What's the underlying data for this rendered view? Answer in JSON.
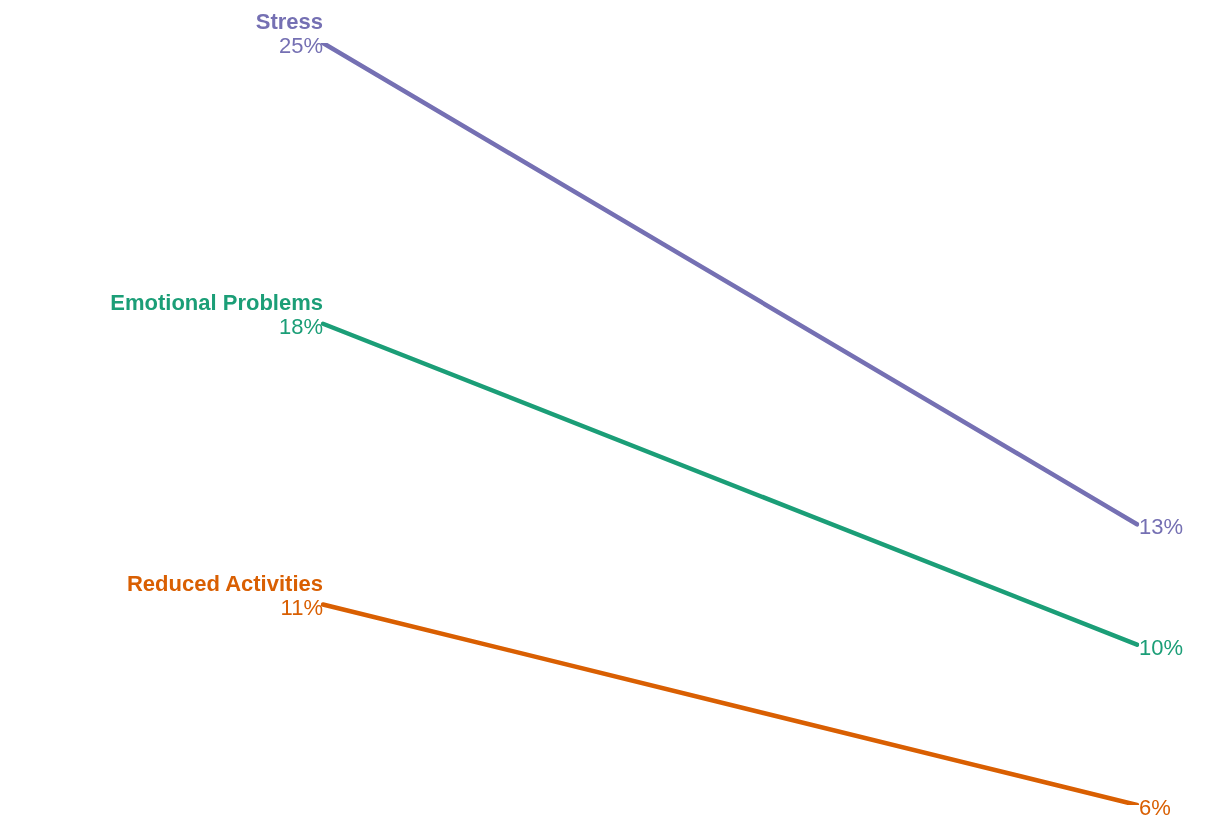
{
  "chart_data": {
    "type": "line",
    "categories": [
      null,
      null
    ],
    "series": [
      {
        "name": "Stress",
        "color": "#7570b3",
        "values": [
          25,
          13
        ],
        "value_labels": [
          "25%",
          "13%"
        ]
      },
      {
        "name": "Emotional Problems",
        "color": "#1b9e77",
        "values": [
          18,
          10
        ],
        "value_labels": [
          "18%",
          "10%"
        ]
      },
      {
        "name": "Reduced Activities",
        "color": "#d95f02",
        "values": [
          11,
          6
        ],
        "value_labels": [
          "11%",
          "6%"
        ]
      }
    ],
    "legend": false,
    "grid": false,
    "tick_labels": false,
    "marker": "none",
    "line_style": "solid"
  }
}
